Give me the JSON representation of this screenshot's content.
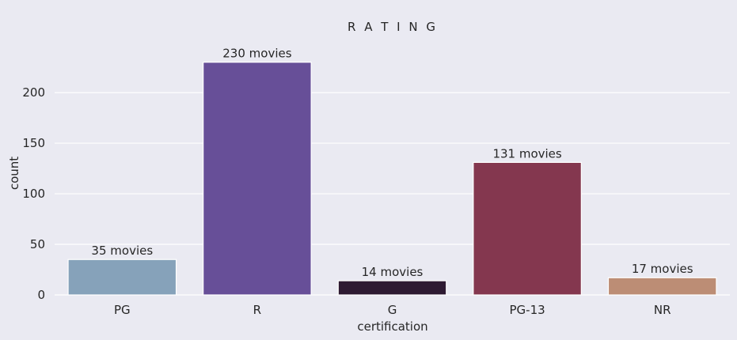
{
  "chart_data": {
    "type": "bar",
    "title": "R A T I N G",
    "xlabel": "certification",
    "ylabel": "count",
    "categories": [
      "PG",
      "R",
      "G",
      "PG-13",
      "NR"
    ],
    "values": [
      35,
      230,
      14,
      131,
      17
    ],
    "data_labels": [
      "35 movies",
      "230 movies",
      "14 movies",
      "131 movies",
      "17 movies"
    ],
    "colors": [
      "#86a2ba",
      "#674f98",
      "#2e1a32",
      "#84374f",
      "#bc8d75"
    ],
    "yticks": [
      0,
      50,
      100,
      150,
      200
    ],
    "ylim": [
      0,
      241.5
    ],
    "grid": true,
    "background": "#eaeaf2"
  }
}
